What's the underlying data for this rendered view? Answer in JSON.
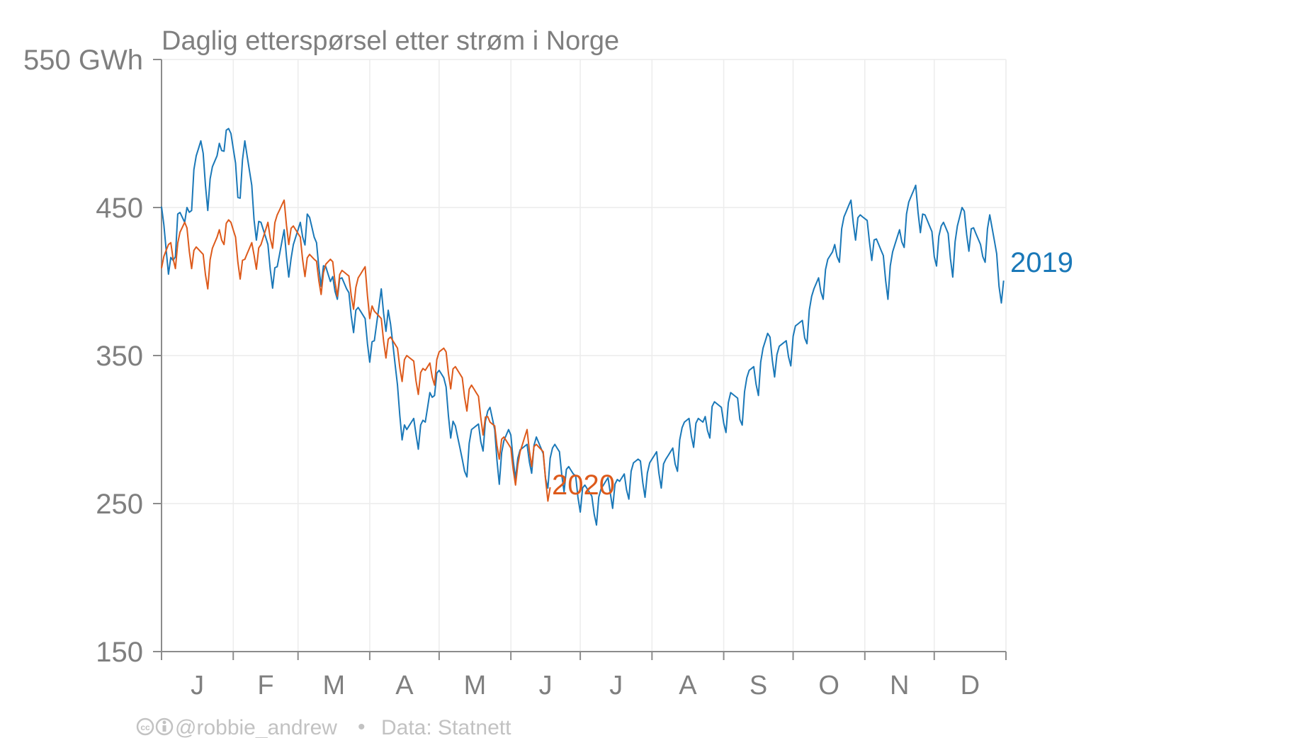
{
  "chart_data": {
    "type": "line",
    "title": "Daglig etterspørsel etter strøm i Norge",
    "y_tick_labels": [
      "550 GWh",
      "450",
      "350",
      "250",
      "150"
    ],
    "y_tick_values": [
      550,
      450,
      350,
      250,
      150
    ],
    "ylim": [
      150,
      550
    ],
    "xlim": [
      0,
      365
    ],
    "x_month_labels": [
      "J",
      "F",
      "M",
      "A",
      "M",
      "J",
      "J",
      "A",
      "S",
      "O",
      "N",
      "D"
    ],
    "month_start_days": [
      0,
      31,
      59,
      90,
      120,
      151,
      181,
      212,
      243,
      273,
      304,
      334,
      365
    ],
    "grid": true,
    "series": [
      {
        "name": "2019",
        "color": "#1a78b8",
        "x_unit": "day of year",
        "anchors": [
          [
            0,
            455
          ],
          [
            3,
            405
          ],
          [
            7,
            450
          ],
          [
            10,
            440
          ],
          [
            14,
            480
          ],
          [
            17,
            495
          ],
          [
            20,
            470
          ],
          [
            24,
            485
          ],
          [
            27,
            510
          ],
          [
            30,
            500
          ],
          [
            33,
            470
          ],
          [
            36,
            495
          ],
          [
            40,
            455
          ],
          [
            43,
            440
          ],
          [
            46,
            425
          ],
          [
            50,
            410
          ],
          [
            53,
            435
          ],
          [
            56,
            420
          ],
          [
            60,
            440
          ],
          [
            63,
            450
          ],
          [
            66,
            430
          ],
          [
            70,
            415
          ],
          [
            73,
            400
          ],
          [
            76,
            410
          ],
          [
            80,
            395
          ],
          [
            84,
            385
          ],
          [
            88,
            375
          ],
          [
            92,
            360
          ],
          [
            95,
            395
          ],
          [
            98,
            385
          ],
          [
            102,
            330
          ],
          [
            106,
            300
          ],
          [
            110,
            310
          ],
          [
            114,
            305
          ],
          [
            118,
            345
          ],
          [
            122,
            335
          ],
          [
            126,
            310
          ],
          [
            130,
            280
          ],
          [
            134,
            300
          ],
          [
            138,
            305
          ],
          [
            142,
            315
          ],
          [
            146,
            285
          ],
          [
            150,
            300
          ],
          [
            154,
            285
          ],
          [
            158,
            290
          ],
          [
            162,
            295
          ],
          [
            166,
            280
          ],
          [
            170,
            290
          ],
          [
            174,
            280
          ],
          [
            178,
            270
          ],
          [
            182,
            265
          ],
          [
            186,
            255
          ],
          [
            190,
            260
          ],
          [
            194,
            270
          ],
          [
            198,
            265
          ],
          [
            202,
            275
          ],
          [
            206,
            280
          ],
          [
            210,
            275
          ],
          [
            214,
            285
          ],
          [
            218,
            280
          ],
          [
            222,
            290
          ],
          [
            226,
            305
          ],
          [
            230,
            310
          ],
          [
            234,
            305
          ],
          [
            238,
            320
          ],
          [
            242,
            315
          ],
          [
            246,
            325
          ],
          [
            250,
            320
          ],
          [
            254,
            340
          ],
          [
            258,
            345
          ],
          [
            262,
            365
          ],
          [
            266,
            355
          ],
          [
            270,
            360
          ],
          [
            274,
            370
          ],
          [
            278,
            375
          ],
          [
            282,
            395
          ],
          [
            286,
            410
          ],
          [
            290,
            420
          ],
          [
            294,
            440
          ],
          [
            298,
            455
          ],
          [
            302,
            445
          ],
          [
            306,
            440
          ],
          [
            310,
            425
          ],
          [
            314,
            410
          ],
          [
            318,
            430
          ],
          [
            322,
            450
          ],
          [
            326,
            465
          ],
          [
            330,
            445
          ],
          [
            334,
            430
          ],
          [
            338,
            440
          ],
          [
            342,
            425
          ],
          [
            346,
            450
          ],
          [
            350,
            440
          ],
          [
            354,
            425
          ],
          [
            358,
            445
          ],
          [
            362,
            410
          ],
          [
            364,
            405
          ]
        ]
      },
      {
        "name": "2020",
        "color": "#dd5a1b",
        "x_unit": "day of year",
        "anchors": [
          [
            0,
            413
          ],
          [
            3,
            425
          ],
          [
            7,
            430
          ],
          [
            10,
            440
          ],
          [
            14,
            425
          ],
          [
            17,
            420
          ],
          [
            20,
            415
          ],
          [
            24,
            430
          ],
          [
            27,
            445
          ],
          [
            30,
            440
          ],
          [
            33,
            425
          ],
          [
            36,
            415
          ],
          [
            40,
            430
          ],
          [
            43,
            425
          ],
          [
            46,
            440
          ],
          [
            50,
            445
          ],
          [
            53,
            455
          ],
          [
            56,
            440
          ],
          [
            60,
            430
          ],
          [
            63,
            420
          ],
          [
            66,
            415
          ],
          [
            70,
            410
          ],
          [
            73,
            415
          ],
          [
            76,
            410
          ],
          [
            80,
            405
          ],
          [
            84,
            400
          ],
          [
            88,
            410
          ],
          [
            92,
            380
          ],
          [
            95,
            375
          ],
          [
            98,
            365
          ],
          [
            102,
            355
          ],
          [
            106,
            350
          ],
          [
            110,
            345
          ],
          [
            114,
            340
          ],
          [
            118,
            350
          ],
          [
            122,
            355
          ],
          [
            126,
            345
          ],
          [
            130,
            335
          ],
          [
            134,
            330
          ],
          [
            138,
            320
          ],
          [
            142,
            305
          ],
          [
            146,
            300
          ],
          [
            150,
            290
          ],
          [
            154,
            280
          ],
          [
            158,
            300
          ],
          [
            162,
            290
          ],
          [
            165,
            285
          ],
          [
            168,
            265
          ]
        ]
      }
    ]
  },
  "labels": {
    "series_2019": "2019",
    "series_2020": "2020"
  },
  "credit": {
    "author": "@robbie_andrew",
    "separator": "•",
    "source": "Data: Statnett"
  }
}
